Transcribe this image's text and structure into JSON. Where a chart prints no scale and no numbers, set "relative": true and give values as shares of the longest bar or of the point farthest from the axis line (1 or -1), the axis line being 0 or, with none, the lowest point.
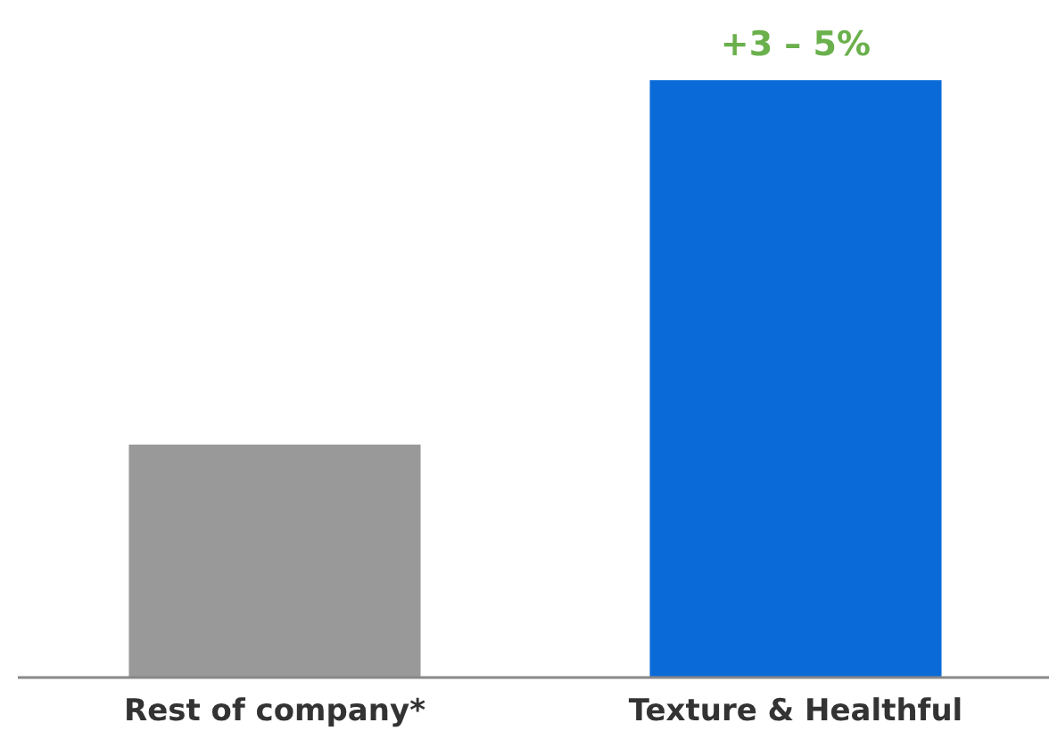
{
  "chart_data": {
    "type": "bar",
    "relative": true,
    "categories": [
      "Rest of company*",
      "Texture & Healthful"
    ],
    "values": [
      0.39,
      1
    ],
    "colors": [
      "#999999",
      "#0a6ad8"
    ],
    "annotations": [
      "+3 – 5%"
    ]
  }
}
